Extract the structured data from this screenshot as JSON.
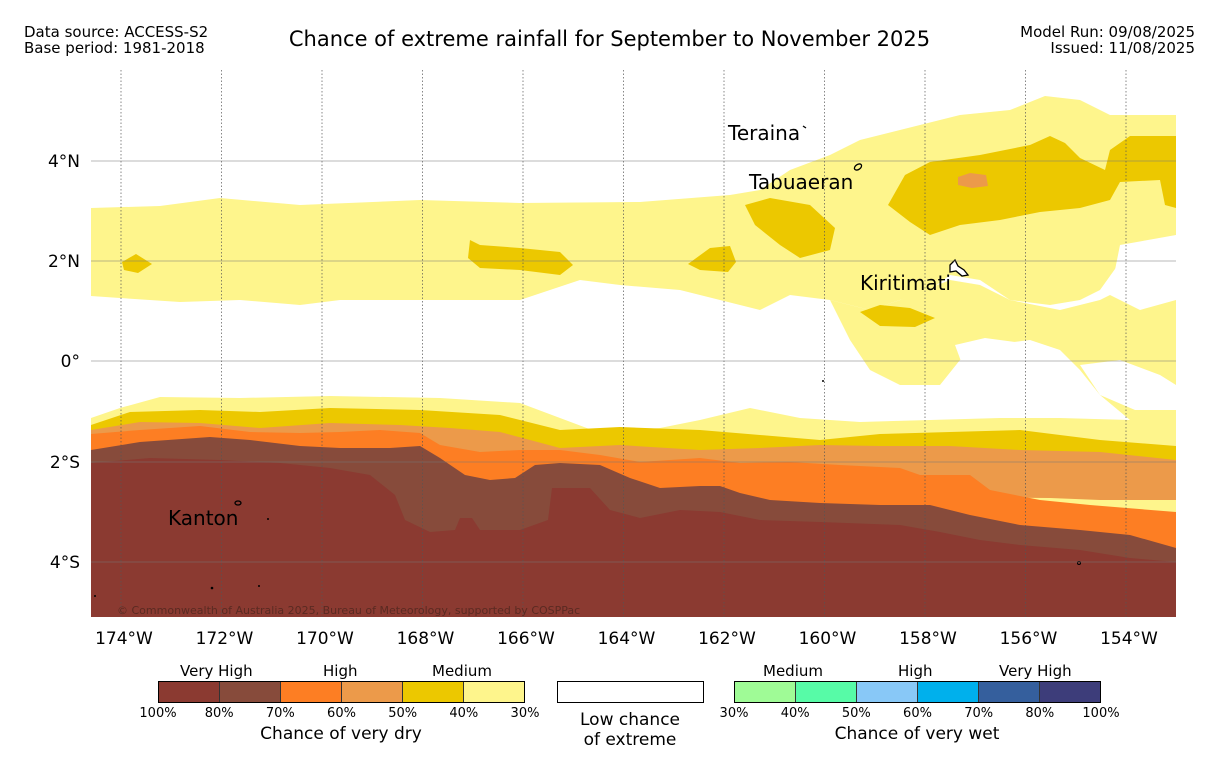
{
  "header": {
    "data_source": "Data source: ACCESS-S2",
    "base_period": "Base period: 1981-2018",
    "title": "Chance of extreme rainfall for September to November 2025",
    "model_run": "Model Run: 09/08/2025",
    "issued": "Issued: 11/08/2025"
  },
  "map": {
    "lon_labels": [
      "174°W",
      "172°W",
      "170°W",
      "168°W",
      "166°W",
      "164°W",
      "162°W",
      "160°W",
      "158°W",
      "156°W",
      "154°W"
    ],
    "lat_labels": [
      "4°N",
      "2°N",
      "0°",
      "2°S",
      "4°S"
    ],
    "place_labels": [
      "Teraina",
      "Tabuaeran",
      "Kiritimati",
      "Kanton"
    ],
    "copyright": "© Commonwealth of Australia 2025, Bureau of Meteorology, supported by COSPPac"
  },
  "legend": {
    "dry": {
      "levels": [
        "Very High",
        "High",
        "Medium"
      ],
      "ticks": [
        "100%",
        "80%",
        "70%",
        "60%",
        "50%",
        "40%",
        "30%"
      ],
      "colors": [
        "#8b3a31",
        "#874b3b",
        "#fd7e23",
        "#ec9a4a",
        "#ecc800",
        "#fef58c"
      ],
      "caption": "Chance of very dry"
    },
    "low": {
      "caption_line1": "Low chance",
      "caption_line2": "of extreme"
    },
    "wet": {
      "levels": [
        "Medium",
        "High",
        "Very High"
      ],
      "ticks": [
        "30%",
        "40%",
        "50%",
        "60%",
        "70%",
        "80%",
        "100%"
      ],
      "colors": [
        "#9ffb96",
        "#57fba7",
        "#88c8f7",
        "#00b0ec",
        "#355f9d",
        "#3d3d7a"
      ],
      "caption": "Chance of very wet"
    }
  }
}
